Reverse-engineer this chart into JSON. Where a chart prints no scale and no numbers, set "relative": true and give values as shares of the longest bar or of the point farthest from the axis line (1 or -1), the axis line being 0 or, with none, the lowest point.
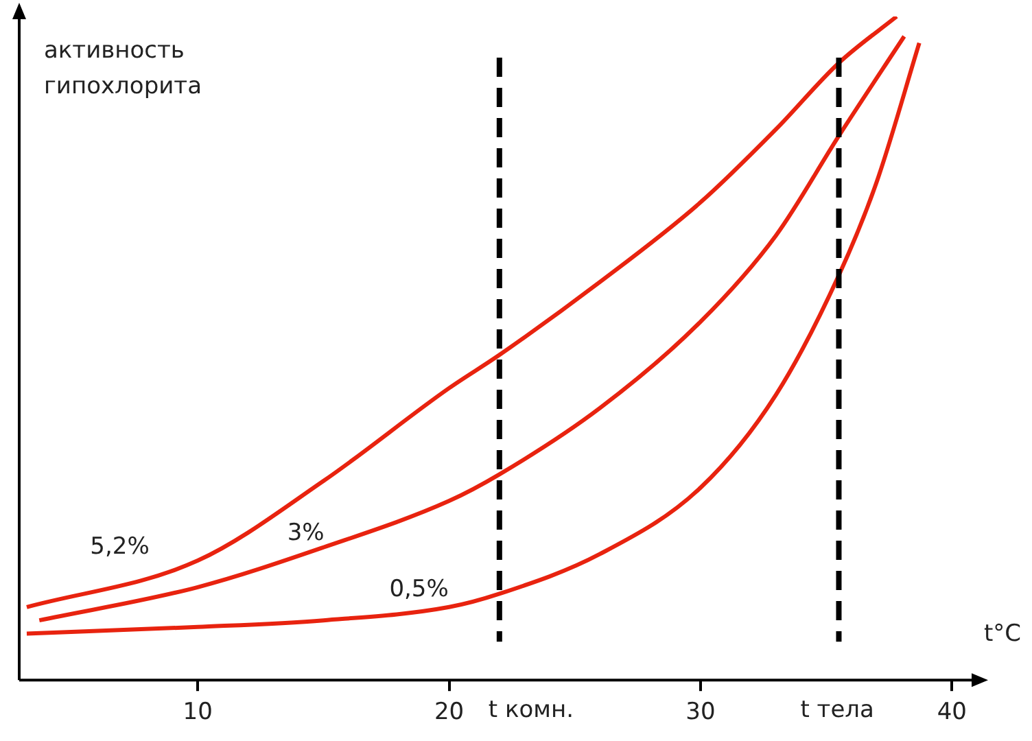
{
  "chart_data": {
    "type": "line",
    "relative": true,
    "ylabel": "активность гипохлорита",
    "xlabel": "t°C",
    "xlim": [
      2.9,
      41
    ],
    "xticks": [
      10,
      20,
      30,
      40
    ],
    "series": [
      {
        "name": "5,2%",
        "color": "#e8230f",
        "x": [
          3.2,
          10,
          15,
          20,
          22,
          26,
          30,
          33,
          35.5,
          37.8
        ],
        "values": [
          0.11,
          0.18,
          0.3,
          0.44,
          0.49,
          0.6,
          0.72,
          0.83,
          0.93,
          1.0
        ]
      },
      {
        "name": "3%",
        "color": "#e8230f",
        "x": [
          3.7,
          10,
          15,
          20,
          22,
          26,
          30,
          33,
          35.5,
          38.1
        ],
        "values": [
          0.09,
          0.14,
          0.2,
          0.27,
          0.31,
          0.41,
          0.54,
          0.67,
          0.82,
          0.97
        ]
      },
      {
        "name": "0,5%",
        "color": "#e8230f",
        "x": [
          3.2,
          10,
          15,
          20,
          22,
          26,
          30,
          33,
          35.5,
          37,
          38.7
        ],
        "values": [
          0.07,
          0.08,
          0.09,
          0.11,
          0.13,
          0.19,
          0.29,
          0.43,
          0.61,
          0.75,
          0.96
        ]
      }
    ],
    "ref_lines": [
      {
        "axis": "x",
        "value": 22,
        "label": "t комн.",
        "color": "#000000",
        "line_style": "dashed"
      },
      {
        "axis": "x",
        "value": 35.5,
        "label": "t тела",
        "color": "#000000",
        "line_style": "dashed"
      }
    ],
    "grid": false,
    "legend": false,
    "marker": "none",
    "line_style": "solid"
  }
}
